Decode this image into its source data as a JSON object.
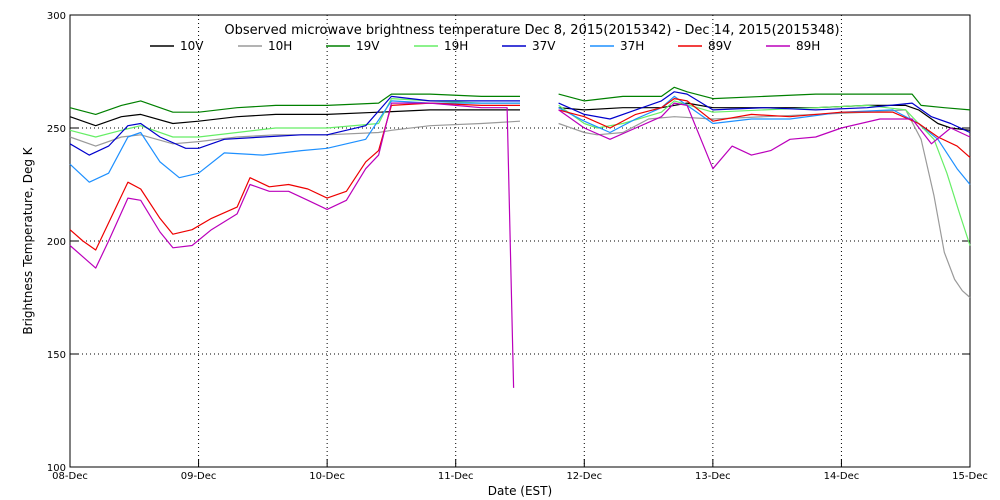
{
  "chart_data": {
    "type": "line",
    "title": "Observed microwave brightness temperature Dec  8, 2015(2015342) - Dec 14, 2015(2015348)",
    "xlabel": "Date (EST)",
    "ylabel": "Brightness Temperature, Deg K",
    "xlim": [
      0,
      7
    ],
    "ylim": [
      100,
      300
    ],
    "yticks": [
      100,
      150,
      200,
      250,
      300
    ],
    "xtick_positions": [
      0,
      1,
      2,
      3,
      4,
      5,
      6,
      7
    ],
    "xtick_labels": [
      "08-Dec",
      "09-Dec",
      "10-Dec",
      "11-Dec",
      "12-Dec",
      "13-Dec",
      "14-Dec",
      "15-Dec"
    ],
    "grid": true,
    "legend_position": "top",
    "series": [
      {
        "name": "10V",
        "color": "#000000",
        "points": [
          [
            0,
            255
          ],
          [
            0.2,
            251
          ],
          [
            0.4,
            255
          ],
          [
            0.55,
            256
          ],
          [
            0.8,
            252
          ],
          [
            1.0,
            253
          ],
          [
            1.3,
            255
          ],
          [
            1.6,
            256
          ],
          [
            2.0,
            256
          ],
          [
            2.4,
            257
          ],
          [
            2.8,
            258
          ],
          [
            3.2,
            258
          ],
          [
            3.5,
            258
          ],
          [
            3.6,
            null
          ],
          [
            3.8,
            259
          ],
          [
            4.0,
            258
          ],
          [
            4.3,
            259
          ],
          [
            4.6,
            259
          ],
          [
            4.8,
            261
          ],
          [
            5.0,
            259
          ],
          [
            5.4,
            259
          ],
          [
            5.8,
            259
          ],
          [
            6.2,
            260
          ],
          [
            6.5,
            260
          ],
          [
            6.6,
            258
          ],
          [
            6.75,
            252
          ],
          [
            6.85,
            250
          ],
          [
            7.0,
            249
          ]
        ]
      },
      {
        "name": "10H",
        "color": "#9a9a9a",
        "points": [
          [
            0,
            246
          ],
          [
            0.2,
            242
          ],
          [
            0.4,
            246
          ],
          [
            0.55,
            247
          ],
          [
            0.8,
            243
          ],
          [
            1.0,
            244
          ],
          [
            1.3,
            246
          ],
          [
            1.6,
            247
          ],
          [
            2.0,
            247
          ],
          [
            2.4,
            248
          ],
          [
            2.5,
            249
          ],
          [
            2.8,
            251
          ],
          [
            3.2,
            252
          ],
          [
            3.5,
            253
          ],
          [
            3.6,
            null
          ],
          [
            3.8,
            252
          ],
          [
            4.0,
            248
          ],
          [
            4.1,
            247
          ],
          [
            4.3,
            248
          ],
          [
            4.5,
            254
          ],
          [
            4.7,
            255
          ],
          [
            5.0,
            254
          ],
          [
            5.4,
            255
          ],
          [
            5.8,
            256
          ],
          [
            6.2,
            257
          ],
          [
            6.5,
            258
          ],
          [
            6.62,
            245
          ],
          [
            6.72,
            220
          ],
          [
            6.8,
            195
          ],
          [
            6.88,
            183
          ],
          [
            6.94,
            178
          ],
          [
            7.0,
            175
          ]
        ]
      },
      {
        "name": "19V",
        "color": "#008000",
        "points": [
          [
            0,
            259
          ],
          [
            0.2,
            256
          ],
          [
            0.4,
            260
          ],
          [
            0.55,
            262
          ],
          [
            0.8,
            257
          ],
          [
            1.0,
            257
          ],
          [
            1.3,
            259
          ],
          [
            1.6,
            260
          ],
          [
            2.0,
            260
          ],
          [
            2.4,
            261
          ],
          [
            2.5,
            265
          ],
          [
            2.8,
            265
          ],
          [
            3.2,
            264
          ],
          [
            3.5,
            264
          ],
          [
            3.6,
            null
          ],
          [
            3.8,
            265
          ],
          [
            4.0,
            262
          ],
          [
            4.3,
            264
          ],
          [
            4.6,
            264
          ],
          [
            4.7,
            268
          ],
          [
            4.8,
            266
          ],
          [
            5.0,
            263
          ],
          [
            5.4,
            264
          ],
          [
            5.8,
            265
          ],
          [
            6.2,
            265
          ],
          [
            6.55,
            265
          ],
          [
            6.62,
            260
          ],
          [
            6.8,
            259
          ],
          [
            7.0,
            258
          ]
        ]
      },
      {
        "name": "19H",
        "color": "#66ee66",
        "points": [
          [
            0,
            249
          ],
          [
            0.2,
            246
          ],
          [
            0.4,
            249
          ],
          [
            0.55,
            251
          ],
          [
            0.8,
            246
          ],
          [
            1.0,
            246
          ],
          [
            1.3,
            248
          ],
          [
            1.6,
            250
          ],
          [
            2.0,
            250
          ],
          [
            2.4,
            252
          ],
          [
            2.5,
            263
          ],
          [
            2.8,
            262
          ],
          [
            3.2,
            261
          ],
          [
            3.5,
            261
          ],
          [
            3.6,
            null
          ],
          [
            3.8,
            260
          ],
          [
            4.0,
            252
          ],
          [
            4.1,
            250
          ],
          [
            4.3,
            252
          ],
          [
            4.6,
            257
          ],
          [
            4.7,
            262
          ],
          [
            5.0,
            257
          ],
          [
            5.4,
            258
          ],
          [
            5.8,
            259
          ],
          [
            6.2,
            260
          ],
          [
            6.5,
            258
          ],
          [
            6.6,
            252
          ],
          [
            6.72,
            245
          ],
          [
            6.82,
            230
          ],
          [
            6.92,
            212
          ],
          [
            7.0,
            198
          ]
        ]
      },
      {
        "name": "37V",
        "color": "#0000cc",
        "points": [
          [
            0,
            243
          ],
          [
            0.15,
            238
          ],
          [
            0.3,
            242
          ],
          [
            0.45,
            251
          ],
          [
            0.55,
            252
          ],
          [
            0.7,
            246
          ],
          [
            0.9,
            241
          ],
          [
            1.0,
            241
          ],
          [
            1.2,
            245
          ],
          [
            1.5,
            246
          ],
          [
            1.8,
            247
          ],
          [
            2.0,
            247
          ],
          [
            2.3,
            251
          ],
          [
            2.5,
            264
          ],
          [
            2.8,
            262
          ],
          [
            3.2,
            262
          ],
          [
            3.5,
            262
          ],
          [
            3.6,
            null
          ],
          [
            3.8,
            261
          ],
          [
            4.0,
            256
          ],
          [
            4.2,
            254
          ],
          [
            4.4,
            258
          ],
          [
            4.6,
            262
          ],
          [
            4.7,
            266
          ],
          [
            4.8,
            265
          ],
          [
            5.0,
            258
          ],
          [
            5.4,
            259
          ],
          [
            5.8,
            258
          ],
          [
            6.2,
            259
          ],
          [
            6.55,
            261
          ],
          [
            6.7,
            255
          ],
          [
            6.85,
            252
          ],
          [
            7.0,
            248
          ]
        ]
      },
      {
        "name": "37H",
        "color": "#1e90ff",
        "points": [
          [
            0,
            234
          ],
          [
            0.15,
            226
          ],
          [
            0.3,
            230
          ],
          [
            0.45,
            246
          ],
          [
            0.55,
            248
          ],
          [
            0.7,
            235
          ],
          [
            0.85,
            228
          ],
          [
            1.0,
            230
          ],
          [
            1.2,
            239
          ],
          [
            1.5,
            238
          ],
          [
            1.8,
            240
          ],
          [
            2.0,
            241
          ],
          [
            2.3,
            245
          ],
          [
            2.5,
            262
          ],
          [
            2.8,
            261
          ],
          [
            3.2,
            261
          ],
          [
            3.5,
            261
          ],
          [
            3.6,
            null
          ],
          [
            3.8,
            259
          ],
          [
            4.0,
            253
          ],
          [
            4.2,
            248
          ],
          [
            4.4,
            254
          ],
          [
            4.6,
            259
          ],
          [
            4.7,
            264
          ],
          [
            5.0,
            252
          ],
          [
            5.3,
            254
          ],
          [
            5.6,
            254
          ],
          [
            6.0,
            257
          ],
          [
            6.4,
            258
          ],
          [
            6.6,
            252
          ],
          [
            6.75,
            245
          ],
          [
            6.9,
            232
          ],
          [
            7.0,
            225
          ]
        ]
      },
      {
        "name": "89V",
        "color": "#ee0000",
        "points": [
          [
            0,
            205
          ],
          [
            0.1,
            200
          ],
          [
            0.2,
            196
          ],
          [
            0.3,
            208
          ],
          [
            0.45,
            226
          ],
          [
            0.55,
            223
          ],
          [
            0.7,
            210
          ],
          [
            0.8,
            203
          ],
          [
            0.95,
            205
          ],
          [
            1.1,
            210
          ],
          [
            1.3,
            215
          ],
          [
            1.4,
            228
          ],
          [
            1.55,
            224
          ],
          [
            1.7,
            225
          ],
          [
            1.85,
            223
          ],
          [
            2.0,
            219
          ],
          [
            2.15,
            222
          ],
          [
            2.3,
            235
          ],
          [
            2.4,
            240
          ],
          [
            2.5,
            260
          ],
          [
            2.8,
            261
          ],
          [
            3.2,
            260
          ],
          [
            3.5,
            260
          ],
          [
            3.6,
            null
          ],
          [
            3.8,
            258
          ],
          [
            4.0,
            255
          ],
          [
            4.2,
            250
          ],
          [
            4.4,
            256
          ],
          [
            4.6,
            259
          ],
          [
            4.7,
            263
          ],
          [
            4.8,
            262
          ],
          [
            5.0,
            253
          ],
          [
            5.3,
            256
          ],
          [
            5.6,
            255
          ],
          [
            6.0,
            257
          ],
          [
            6.4,
            257
          ],
          [
            6.6,
            252
          ],
          [
            6.75,
            246
          ],
          [
            6.9,
            242
          ],
          [
            7.0,
            237
          ]
        ]
      },
      {
        "name": "89H",
        "color": "#bb00bb",
        "points": [
          [
            0,
            198
          ],
          [
            0.1,
            193
          ],
          [
            0.2,
            188
          ],
          [
            0.3,
            200
          ],
          [
            0.45,
            219
          ],
          [
            0.55,
            218
          ],
          [
            0.7,
            204
          ],
          [
            0.8,
            197
          ],
          [
            0.95,
            198
          ],
          [
            1.1,
            205
          ],
          [
            1.3,
            212
          ],
          [
            1.4,
            225
          ],
          [
            1.55,
            222
          ],
          [
            1.7,
            222
          ],
          [
            1.85,
            218
          ],
          [
            2.0,
            214
          ],
          [
            2.15,
            218
          ],
          [
            2.3,
            232
          ],
          [
            2.4,
            238
          ],
          [
            2.5,
            261
          ],
          [
            2.8,
            261
          ],
          [
            3.2,
            259
          ],
          [
            3.4,
            259
          ],
          [
            3.45,
            135
          ],
          [
            3.46,
            null
          ],
          [
            3.8,
            258
          ],
          [
            4.0,
            250
          ],
          [
            4.2,
            245
          ],
          [
            4.4,
            250
          ],
          [
            4.6,
            255
          ],
          [
            4.7,
            261
          ],
          [
            4.8,
            260
          ],
          [
            5.0,
            232
          ],
          [
            5.15,
            242
          ],
          [
            5.3,
            238
          ],
          [
            5.45,
            240
          ],
          [
            5.6,
            245
          ],
          [
            5.8,
            246
          ],
          [
            6.0,
            250
          ],
          [
            6.3,
            254
          ],
          [
            6.55,
            254
          ],
          [
            6.7,
            243
          ],
          [
            6.85,
            250
          ],
          [
            7.0,
            246
          ]
        ]
      }
    ]
  }
}
